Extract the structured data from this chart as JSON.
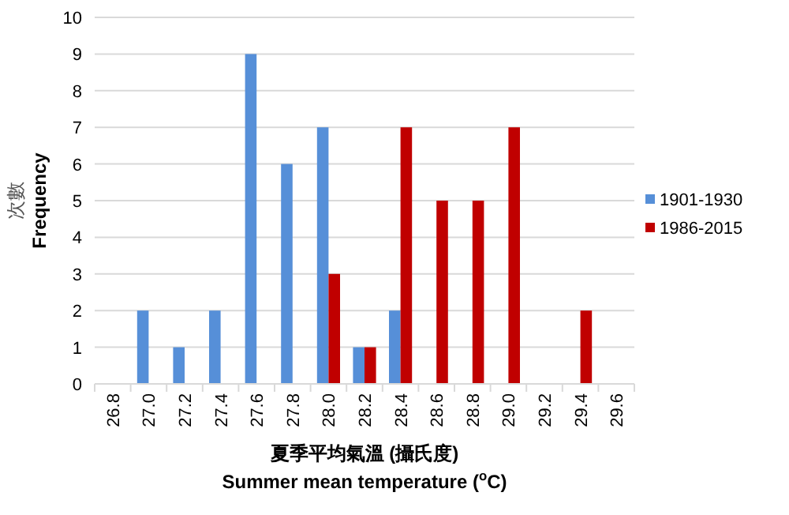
{
  "chart_data": {
    "type": "bar",
    "xlabel": "夏季平均氣溫 (攝氏度)\nSummer mean temperature ($^{o}$C)",
    "ylabel": "次數\nFrequency",
    "categories": [
      "26.8",
      "27.0",
      "27.2",
      "27.4",
      "27.6",
      "27.8",
      "28.0",
      "28.2",
      "28.4",
      "28.6",
      "28.8",
      "29.0",
      "29.2",
      "29.4",
      "29.6"
    ],
    "series": [
      {
        "name": "1901-1930",
        "color": "#568fd8",
        "values": [
          0,
          2,
          1,
          2,
          9,
          6,
          7,
          1,
          2,
          0,
          0,
          0,
          0,
          0,
          0
        ]
      },
      {
        "name": "1986-2015",
        "color": "#c00000",
        "values": [
          0,
          0,
          0,
          0,
          0,
          0,
          3,
          1,
          7,
          5,
          5,
          7,
          0,
          2,
          0
        ]
      }
    ],
    "ylim": [
      0,
      10
    ],
    "yticks": [
      0,
      1,
      2,
      3,
      4,
      5,
      6,
      7,
      8,
      9,
      10
    ],
    "grid": "y",
    "legend": "right"
  }
}
